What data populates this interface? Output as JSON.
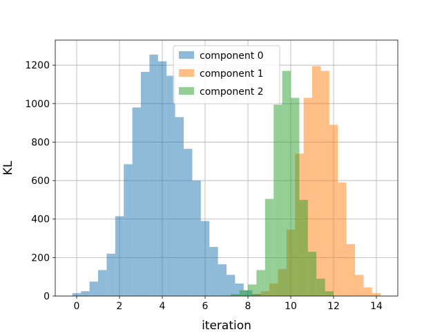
{
  "chart_data": {
    "type": "histogram",
    "xlabel": "iteration",
    "ylabel": "KL",
    "xlim": [
      -1,
      15
    ],
    "ylim": [
      0,
      1330
    ],
    "xticks": [
      0,
      2,
      4,
      6,
      8,
      10,
      12,
      14
    ],
    "yticks": [
      0,
      200,
      400,
      600,
      800,
      1000,
      1200
    ],
    "grid": true,
    "legend_position": "upper center",
    "alpha": 0.5,
    "series": [
      {
        "name": "component 0",
        "color": "#1f77b4",
        "bins": [
          [
            -0.2,
            0.2,
            15
          ],
          [
            0.2,
            0.6,
            25
          ],
          [
            0.6,
            1.0,
            75
          ],
          [
            1.0,
            1.4,
            135
          ],
          [
            1.4,
            1.8,
            220
          ],
          [
            1.8,
            2.2,
            415
          ],
          [
            2.2,
            2.6,
            685
          ],
          [
            2.6,
            3.0,
            980
          ],
          [
            3.0,
            3.4,
            1165
          ],
          [
            3.4,
            3.8,
            1255
          ],
          [
            3.8,
            4.2,
            1220
          ],
          [
            4.2,
            4.6,
            1145
          ],
          [
            4.6,
            5.0,
            930
          ],
          [
            5.0,
            5.4,
            765
          ],
          [
            5.4,
            5.8,
            600
          ],
          [
            5.8,
            6.2,
            390
          ],
          [
            6.2,
            6.6,
            255
          ],
          [
            6.6,
            7.0,
            165
          ],
          [
            7.0,
            7.4,
            110
          ],
          [
            7.4,
            7.8,
            65
          ],
          [
            7.8,
            8.2,
            30
          ],
          [
            8.2,
            8.6,
            10
          ]
        ]
      },
      {
        "name": "component 1",
        "color": "#ff7f0e",
        "bins": [
          [
            8.2,
            8.6,
            10
          ],
          [
            8.6,
            9.0,
            25
          ],
          [
            9.0,
            9.4,
            65
          ],
          [
            9.4,
            9.8,
            140
          ],
          [
            9.8,
            10.2,
            345
          ],
          [
            10.2,
            10.6,
            740
          ],
          [
            10.6,
            11.0,
            1030
          ],
          [
            11.0,
            11.4,
            1195
          ],
          [
            11.4,
            11.8,
            1170
          ],
          [
            11.8,
            12.2,
            890
          ],
          [
            12.2,
            12.6,
            590
          ],
          [
            12.6,
            13.0,
            270
          ],
          [
            13.0,
            13.4,
            110
          ],
          [
            13.4,
            13.8,
            45
          ],
          [
            13.8,
            14.2,
            15
          ]
        ]
      },
      {
        "name": "component 2",
        "color": "#2ca02c",
        "bins": [
          [
            7.2,
            7.6,
            10
          ],
          [
            7.6,
            8.0,
            30
          ],
          [
            8.0,
            8.4,
            60
          ],
          [
            8.4,
            8.8,
            135
          ],
          [
            8.8,
            9.2,
            505
          ],
          [
            9.2,
            9.6,
            995
          ],
          [
            9.6,
            10.0,
            1170
          ],
          [
            10.0,
            10.4,
            1030
          ],
          [
            10.4,
            10.8,
            500
          ],
          [
            10.8,
            11.2,
            230
          ],
          [
            11.2,
            11.6,
            90
          ],
          [
            11.6,
            12.0,
            25
          ]
        ]
      }
    ]
  }
}
